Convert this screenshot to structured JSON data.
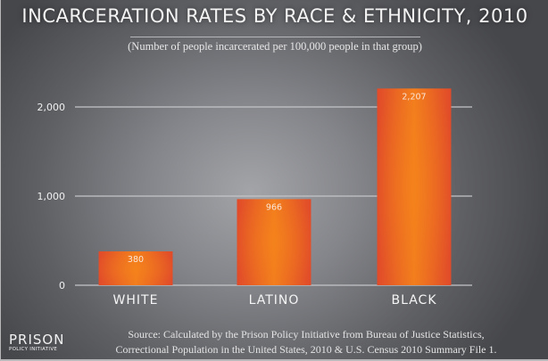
{
  "chart_data": {
    "type": "bar",
    "title": "INCARCERATION RATES BY RACE & ETHNICITY, 2010",
    "subtitle": "(Number of people incarcerated per 100,000 people in that group)",
    "categories": [
      "WHITE",
      "LATINO",
      "BLACK"
    ],
    "values": [
      380,
      966,
      2207
    ],
    "value_labels": [
      "380",
      "966",
      "2,207"
    ],
    "xlabel": "",
    "ylabel": "",
    "ylim": [
      0,
      2400
    ],
    "yticks": [
      0,
      1000,
      2000
    ],
    "ytick_labels": [
      "0",
      "1,000",
      "2,000"
    ],
    "grid": true,
    "legend": "none",
    "bar_color": "#e2502a",
    "bar_highlight": "#f07b1e"
  },
  "footer": {
    "source_line1": "Source: Calculated by the Prison Policy Initiative from Bureau of Justice Statistics,",
    "source_line2": "Correctional Population in the United States, 2010 & U.S. Census 2010 Summary File 1.",
    "logo_main": "PRISON",
    "logo_sub": "POLICY INITIATIVE"
  }
}
